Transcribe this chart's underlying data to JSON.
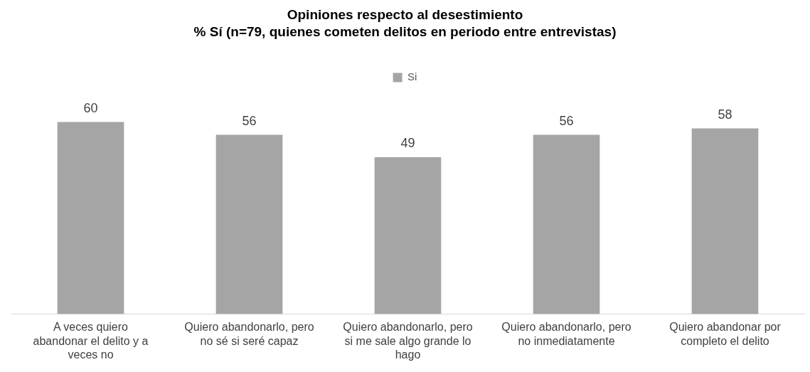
{
  "chart_data": {
    "type": "bar",
    "title": "Opiniones respecto al desestimiento",
    "subtitle": "% Sí (n=79, quienes cometen delitos en periodo entre entrevistas)",
    "categories": [
      "A veces quiero abandonar el delito y a veces no",
      "Quiero abandonarlo, pero no sé si seré capaz",
      "Quiero abandonarlo, pero si me sale algo grande lo hago",
      "Quiero abandonarlo, pero no inmediatamente",
      "Quiero abandonar por completo el delito"
    ],
    "series": [
      {
        "name": "Si",
        "color": "#a5a5a5",
        "values": [
          60,
          56,
          49,
          56,
          58
        ]
      }
    ],
    "tick_labels": "x",
    "grid": false,
    "legend": "top",
    "data_labels": true
  }
}
